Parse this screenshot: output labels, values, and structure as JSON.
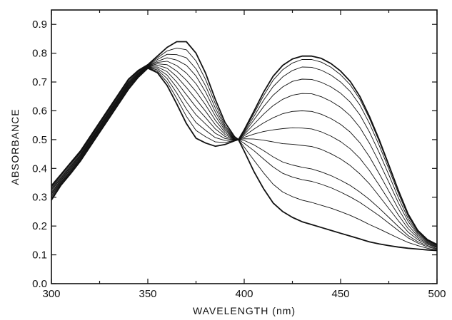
{
  "chart_data": {
    "type": "line",
    "title": "",
    "xlabel": "WAVELENGTH  (nm)",
    "ylabel": "ABSORBANCE",
    "xlim": [
      300,
      500
    ],
    "ylim": [
      0.0,
      0.95
    ],
    "x_ticks": [
      300,
      350,
      400,
      450,
      500
    ],
    "x_minor_ticks": [
      325,
      375,
      425,
      475
    ],
    "y_ticks": [
      0.0,
      0.1,
      0.2,
      0.3,
      0.4,
      0.5,
      0.6,
      0.7,
      0.8,
      0.9
    ],
    "x_tick_labels": [
      "300",
      "350",
      "400",
      "450",
      "500"
    ],
    "y_tick_labels": [
      "0.0",
      "0.1",
      "0.2",
      "0.3",
      "0.4",
      "0.5",
      "0.6",
      "0.7",
      "0.8",
      "0.9"
    ],
    "grid": false,
    "legend": "none",
    "x": [
      300,
      305,
      310,
      315,
      320,
      325,
      330,
      335,
      340,
      345,
      350,
      355,
      360,
      365,
      370,
      375,
      380,
      385,
      390,
      395,
      397,
      400,
      405,
      410,
      415,
      420,
      425,
      430,
      435,
      440,
      445,
      450,
      455,
      460,
      465,
      470,
      475,
      480,
      485,
      490,
      495,
      500
    ],
    "series": [
      {
        "values": [
          0.34,
          0.38,
          0.42,
          0.46,
          0.51,
          0.56,
          0.61,
          0.66,
          0.71,
          0.74,
          0.76,
          0.79,
          0.82,
          0.84,
          0.84,
          0.8,
          0.73,
          0.64,
          0.56,
          0.51,
          0.5,
          0.46,
          0.39,
          0.33,
          0.28,
          0.25,
          0.23,
          0.215,
          0.205,
          0.195,
          0.185,
          0.175,
          0.165,
          0.155,
          0.145,
          0.138,
          0.132,
          0.127,
          0.123,
          0.12,
          0.117,
          0.115
        ]
      },
      {
        "values": [
          0.335,
          0.376,
          0.416,
          0.456,
          0.506,
          0.556,
          0.606,
          0.656,
          0.706,
          0.737,
          0.758,
          0.784,
          0.808,
          0.818,
          0.812,
          0.773,
          0.708,
          0.625,
          0.55,
          0.507,
          0.5,
          0.474,
          0.429,
          0.385,
          0.345,
          0.318,
          0.302,
          0.29,
          0.282,
          0.272,
          0.262,
          0.25,
          0.237,
          0.222,
          0.205,
          0.19,
          0.174,
          0.158,
          0.143,
          0.132,
          0.123,
          0.117
        ]
      },
      {
        "values": [
          0.331,
          0.372,
          0.412,
          0.453,
          0.503,
          0.553,
          0.603,
          0.653,
          0.702,
          0.735,
          0.757,
          0.778,
          0.796,
          0.795,
          0.784,
          0.746,
          0.686,
          0.61,
          0.544,
          0.504,
          0.5,
          0.487,
          0.462,
          0.433,
          0.405,
          0.383,
          0.37,
          0.361,
          0.355,
          0.345,
          0.333,
          0.318,
          0.301,
          0.282,
          0.259,
          0.236,
          0.21,
          0.184,
          0.159,
          0.141,
          0.128,
          0.12
        ]
      },
      {
        "values": [
          0.327,
          0.368,
          0.408,
          0.449,
          0.499,
          0.549,
          0.599,
          0.649,
          0.699,
          0.732,
          0.756,
          0.772,
          0.784,
          0.776,
          0.758,
          0.721,
          0.665,
          0.596,
          0.538,
          0.502,
          0.5,
          0.497,
          0.482,
          0.462,
          0.44,
          0.422,
          0.412,
          0.404,
          0.398,
          0.388,
          0.375,
          0.359,
          0.341,
          0.318,
          0.292,
          0.262,
          0.23,
          0.198,
          0.167,
          0.146,
          0.132,
          0.122
        ]
      },
      {
        "values": [
          0.323,
          0.365,
          0.405,
          0.446,
          0.496,
          0.546,
          0.596,
          0.646,
          0.696,
          0.73,
          0.755,
          0.768,
          0.772,
          0.757,
          0.731,
          0.694,
          0.642,
          0.582,
          0.532,
          0.501,
          0.5,
          0.503,
          0.502,
          0.498,
          0.492,
          0.486,
          0.484,
          0.48,
          0.476,
          0.466,
          0.451,
          0.433,
          0.41,
          0.381,
          0.346,
          0.304,
          0.261,
          0.218,
          0.179,
          0.153,
          0.136,
          0.125
        ]
      },
      {
        "values": [
          0.318,
          0.361,
          0.401,
          0.443,
          0.493,
          0.543,
          0.593,
          0.643,
          0.693,
          0.728,
          0.754,
          0.763,
          0.76,
          0.738,
          0.706,
          0.667,
          0.62,
          0.567,
          0.525,
          0.5,
          0.5,
          0.508,
          0.519,
          0.528,
          0.534,
          0.538,
          0.541,
          0.54,
          0.537,
          0.527,
          0.512,
          0.493,
          0.468,
          0.435,
          0.392,
          0.342,
          0.29,
          0.238,
          0.191,
          0.159,
          0.139,
          0.127
        ]
      },
      {
        "values": [
          0.314,
          0.358,
          0.398,
          0.44,
          0.49,
          0.54,
          0.59,
          0.64,
          0.69,
          0.726,
          0.753,
          0.758,
          0.748,
          0.719,
          0.681,
          0.64,
          0.598,
          0.552,
          0.518,
          0.5,
          0.5,
          0.513,
          0.536,
          0.558,
          0.576,
          0.59,
          0.598,
          0.6,
          0.598,
          0.588,
          0.573,
          0.553,
          0.526,
          0.489,
          0.44,
          0.382,
          0.321,
          0.259,
          0.203,
          0.165,
          0.142,
          0.129
        ]
      },
      {
        "values": [
          0.31,
          0.354,
          0.394,
          0.437,
          0.487,
          0.537,
          0.587,
          0.637,
          0.687,
          0.724,
          0.752,
          0.752,
          0.736,
          0.7,
          0.656,
          0.613,
          0.576,
          0.537,
          0.511,
          0.499,
          0.5,
          0.518,
          0.553,
          0.588,
          0.618,
          0.64,
          0.654,
          0.66,
          0.659,
          0.649,
          0.633,
          0.612,
          0.583,
          0.542,
          0.487,
          0.422,
          0.352,
          0.28,
          0.216,
          0.171,
          0.145,
          0.131
        ]
      },
      {
        "values": [
          0.305,
          0.351,
          0.391,
          0.434,
          0.484,
          0.534,
          0.584,
          0.634,
          0.684,
          0.722,
          0.751,
          0.747,
          0.724,
          0.681,
          0.631,
          0.586,
          0.554,
          0.522,
          0.504,
          0.499,
          0.5,
          0.522,
          0.568,
          0.614,
          0.654,
          0.683,
          0.702,
          0.71,
          0.709,
          0.699,
          0.683,
          0.661,
          0.63,
          0.586,
          0.526,
          0.455,
          0.378,
          0.298,
          0.226,
          0.176,
          0.148,
          0.133
        ]
      },
      {
        "values": [
          0.3,
          0.348,
          0.388,
          0.431,
          0.481,
          0.531,
          0.581,
          0.631,
          0.681,
          0.72,
          0.75,
          0.742,
          0.712,
          0.662,
          0.606,
          0.559,
          0.532,
          0.507,
          0.497,
          0.498,
          0.5,
          0.526,
          0.58,
          0.636,
          0.684,
          0.718,
          0.74,
          0.752,
          0.751,
          0.741,
          0.724,
          0.7,
          0.667,
          0.62,
          0.556,
          0.48,
          0.398,
          0.313,
          0.235,
          0.18,
          0.15,
          0.134
        ]
      },
      {
        "values": [
          0.295,
          0.345,
          0.385,
          0.428,
          0.478,
          0.528,
          0.578,
          0.628,
          0.678,
          0.718,
          0.749,
          0.737,
          0.7,
          0.643,
          0.581,
          0.532,
          0.51,
          0.492,
          0.49,
          0.497,
          0.5,
          0.53,
          0.59,
          0.652,
          0.706,
          0.743,
          0.766,
          0.778,
          0.778,
          0.769,
          0.751,
          0.725,
          0.69,
          0.64,
          0.573,
          0.494,
          0.408,
          0.32,
          0.24,
          0.183,
          0.152,
          0.135
        ]
      },
      {
        "values": [
          0.29,
          0.342,
          0.382,
          0.425,
          0.475,
          0.525,
          0.575,
          0.625,
          0.675,
          0.716,
          0.748,
          0.732,
          0.688,
          0.624,
          0.556,
          0.505,
          0.488,
          0.477,
          0.483,
          0.496,
          0.5,
          0.534,
          0.598,
          0.664,
          0.72,
          0.758,
          0.78,
          0.79,
          0.79,
          0.782,
          0.764,
          0.738,
          0.702,
          0.65,
          0.58,
          0.5,
          0.412,
          0.323,
          0.242,
          0.185,
          0.153,
          0.136
        ]
      }
    ]
  }
}
